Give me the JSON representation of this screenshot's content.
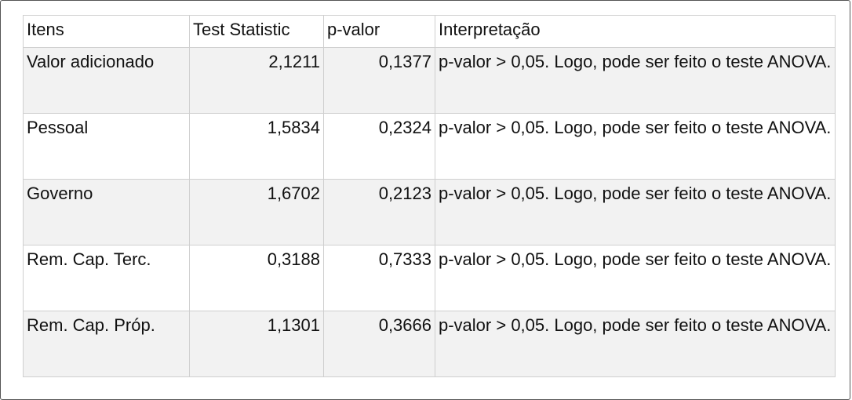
{
  "table": {
    "headers": {
      "item": "Itens",
      "stat": "Test Statistic",
      "p": "p-valor",
      "interp": "Interpretação"
    },
    "rows": [
      {
        "item": "Valor adicionado",
        "stat": "2,1211",
        "p": "0,1377",
        "interp": "p-valor > 0,05. Logo, pode ser feito o teste ANOVA."
      },
      {
        "item": "Pessoal",
        "stat": "1,5834",
        "p": "0,2324",
        "interp": "p-valor > 0,05. Logo, pode ser feito o teste ANOVA."
      },
      {
        "item": "Governo",
        "stat": "1,6702",
        "p": "0,2123",
        "interp": "p-valor > 0,05. Logo, pode ser feito o teste ANOVA."
      },
      {
        "item": "Rem. Cap. Terc.",
        "stat": "0,3188",
        "p": "0,7333",
        "interp": "p-valor > 0,05. Logo, pode ser feito o teste ANOVA."
      },
      {
        "item": "Rem. Cap. Próp.",
        "stat": "1,1301",
        "p": "0,3666",
        "interp": "p-valor > 0,05. Logo, pode ser feito o teste ANOVA."
      }
    ]
  }
}
